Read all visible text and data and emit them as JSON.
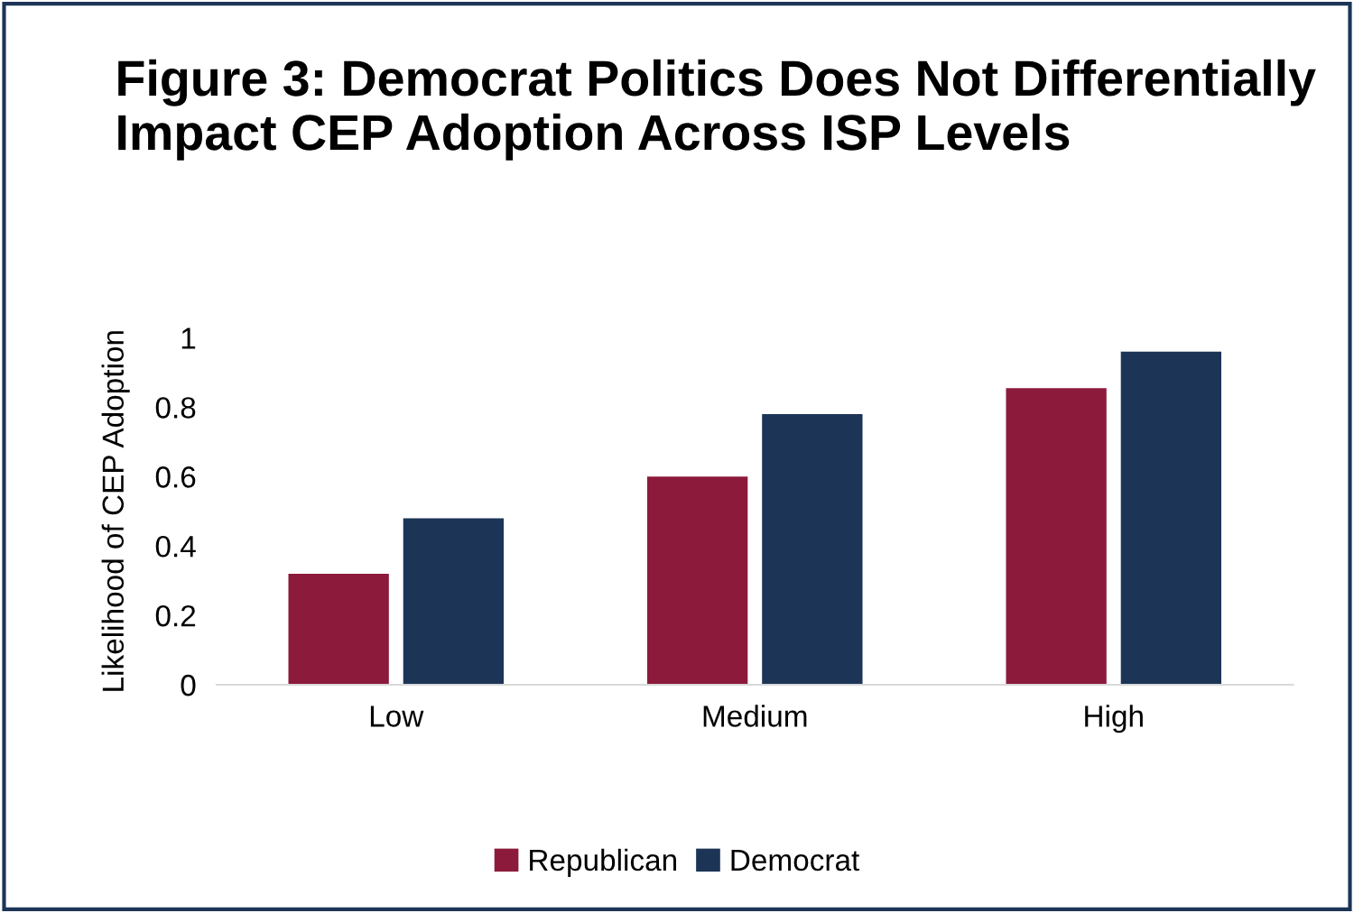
{
  "chart_data": {
    "type": "bar",
    "title": "Figure 3: Democrat Politics Does Not Differentially Impact CEP Adoption Across ISP Levels",
    "ylabel": "Likelihood of CEP Adoption",
    "categories": [
      "Low",
      "Medium",
      "High"
    ],
    "series": [
      {
        "name": "Republican",
        "color": "#8b1a3b",
        "values": [
          0.32,
          0.6,
          0.855
        ]
      },
      {
        "name": "Democrat",
        "color": "#1c3557",
        "values": [
          0.48,
          0.78,
          0.96
        ]
      }
    ],
    "ylim": [
      0,
      1
    ],
    "yticks": [
      0,
      0.2,
      0.4,
      0.6,
      0.8,
      1
    ],
    "grid": false,
    "legend": "bottom"
  }
}
